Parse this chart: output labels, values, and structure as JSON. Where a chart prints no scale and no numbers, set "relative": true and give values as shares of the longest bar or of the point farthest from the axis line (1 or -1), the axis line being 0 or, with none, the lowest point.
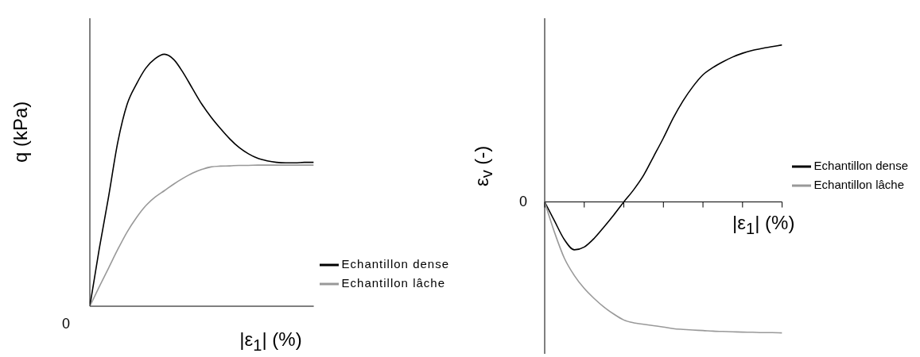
{
  "chart_data": [
    {
      "type": "line",
      "relative": true,
      "xlabel": "|ε$_{1}$| (%)",
      "ylabel": "q (kPa)",
      "legend": "bottom right",
      "annotations": [
        "0"
      ],
      "categories": [
        null,
        null,
        null,
        null,
        null,
        null,
        null,
        null,
        null,
        null,
        null,
        null,
        null,
        null,
        null,
        null,
        null,
        null,
        null,
        null,
        null,
        null,
        null,
        null,
        null
      ],
      "series": [
        {
          "name": "Echantillon dense",
          "color": "#000000",
          "values": [
            0,
            0.226,
            0.433,
            0.652,
            0.802,
            0.882,
            0.945,
            0.983,
            1,
            0.979,
            0.927,
            0.864,
            0.802,
            0.75,
            0.705,
            0.664,
            0.63,
            0.605,
            0.587,
            0.577,
            0.571,
            0.569,
            0.569,
            0.571,
            0.571
          ]
        },
        {
          "name": "Echantillon lâche",
          "color": "#999999",
          "values": [
            0,
            0.077,
            0.151,
            0.226,
            0.295,
            0.352,
            0.399,
            0.433,
            0.459,
            0.485,
            0.508,
            0.528,
            0.543,
            0.553,
            0.556,
            0.557,
            0.559,
            0.559,
            0.56,
            0.56,
            0.56,
            0.56,
            0.56,
            0.56,
            0.56
          ]
        }
      ]
    },
    {
      "type": "line",
      "relative": true,
      "xlabel": "|ε$_{1}$| (%)",
      "ylabel": "ε$_{v}$ (-)",
      "legend": "right",
      "annotations": [
        "0"
      ],
      "categories": [
        null,
        null,
        null,
        null,
        null,
        null,
        null,
        null,
        null,
        null,
        null,
        null,
        null,
        null,
        null,
        null,
        null,
        null,
        null,
        null,
        null,
        null,
        null,
        null,
        null
      ],
      "series": [
        {
          "name": "Echantillon dense",
          "color": "#000000",
          "values": [
            0,
            -0.122,
            -0.241,
            -0.305,
            -0.287,
            -0.232,
            -0.159,
            -0.082,
            0,
            0.078,
            0.17,
            0.288,
            0.407,
            0.535,
            0.645,
            0.736,
            0.81,
            0.856,
            0.892,
            0.923,
            0.947,
            0.965,
            0.978,
            0.989,
            1
          ]
        },
        {
          "name": "Echantillon lâche",
          "color": "#999999",
          "values": [
            0,
            -0.195,
            -0.36,
            -0.469,
            -0.551,
            -0.615,
            -0.67,
            -0.715,
            -0.752,
            -0.77,
            -0.779,
            -0.788,
            -0.797,
            -0.807,
            -0.812,
            -0.816,
            -0.819,
            -0.823,
            -0.825,
            -0.827,
            -0.829,
            -0.83,
            -0.832,
            -0.832,
            -0.834
          ]
        }
      ]
    }
  ]
}
